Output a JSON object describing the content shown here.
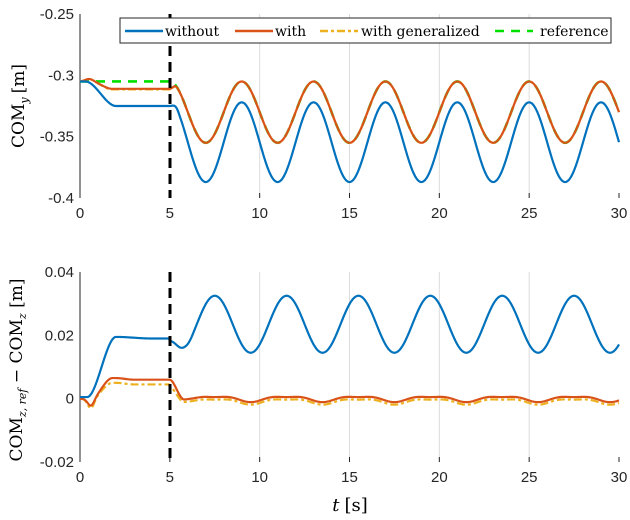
{
  "chart_data": [
    {
      "type": "line",
      "title": "",
      "xlabel": "",
      "ylabel": "COM_y [m]",
      "xlim": [
        0,
        30
      ],
      "ylim": [
        -0.4,
        -0.25
      ],
      "xticks": [
        "0",
        "5",
        "10",
        "15",
        "20",
        "25",
        "30"
      ],
      "yticks": [
        "-0.25",
        "-0.3",
        "-0.35",
        "-0.4"
      ],
      "grid": "x",
      "vline": {
        "x": 5,
        "style": "dashed",
        "color": "#000000"
      },
      "legend": {
        "position": "top",
        "entries": [
          "without",
          "with",
          "with generalized",
          "reference"
        ]
      },
      "series": [
        {
          "name": "without",
          "color": "#0072BD",
          "style": "solid",
          "description": "starts -0.305, settles -0.325 until t=5, then sinusoid period 4s between -0.322 and -0.387, peaks at t=9,13,17,21,25,29",
          "steady_pre": -0.325,
          "osc_max": -0.322,
          "osc_min": -0.387,
          "period": 4
        },
        {
          "name": "with",
          "color": "#D95319",
          "style": "solid",
          "description": "starts -0.305, small bump to -0.303, settles -0.311 until t=5, then sinusoid between -0.305 and -0.355 tracking reference",
          "steady_pre": -0.311,
          "osc_max": -0.305,
          "osc_min": -0.355,
          "period": 4
        },
        {
          "name": "with generalized",
          "color": "#EDB120",
          "style": "dash-dot",
          "description": "nearly identical to 'with'",
          "steady_pre": -0.312,
          "osc_max": -0.305,
          "osc_min": -0.355,
          "period": 4
        },
        {
          "name": "reference",
          "color": "#00E000",
          "style": "dashed",
          "description": "constant -0.305 until t=5, then sinusoid between -0.305 and -0.355",
          "steady_pre": -0.305,
          "osc_max": -0.305,
          "osc_min": -0.355,
          "period": 4
        }
      ]
    },
    {
      "type": "line",
      "title": "",
      "xlabel": "t [s]",
      "ylabel": "COM_z,ref − COM_z [m]",
      "xlim": [
        0,
        30
      ],
      "ylim": [
        -0.02,
        0.04
      ],
      "xticks": [
        "0",
        "5",
        "10",
        "15",
        "20",
        "25",
        "30"
      ],
      "yticks": [
        "0.04",
        "0.02",
        "0",
        "-0.02"
      ],
      "grid": "x",
      "vline": {
        "x": 5,
        "style": "dashed",
        "color": "#000000"
      },
      "series": [
        {
          "name": "without",
          "color": "#0072BD",
          "style": "solid",
          "description": "starts 0, rises to ~0.019 by t=2, steady 0.018 until t=5, dip to 0.017, then sinusoid period 4s between 0.014 and 0.0325, peaks at t≈7.5,11.5,15.5,19.5,23.5,27.5",
          "steady_pre": 0.018,
          "osc_max": 0.0325,
          "osc_min": 0.0145,
          "period": 4
        },
        {
          "name": "with",
          "color": "#D95319",
          "style": "solid",
          "description": "dips to -0.002 at t=0.5, rises to 0.0065, steady ~0.006 until t=5, drops to ~0, small oscillation ±0.001",
          "steady_pre": 0.006,
          "osc_max": 0.001,
          "osc_min": -0.001,
          "period": 4
        },
        {
          "name": "with generalized",
          "color": "#EDB120",
          "style": "dash-dot",
          "description": "slightly below 'with': steady ~0.0045 until t=5, then oscillation around -0.001",
          "steady_pre": 0.0045,
          "osc_max": 0.0,
          "osc_min": -0.002,
          "period": 4
        }
      ]
    }
  ],
  "top": {
    "yticks": [
      "-0.25",
      "-0.3",
      "-0.35",
      "-0.4"
    ],
    "xticks": [
      "0",
      "5",
      "10",
      "15",
      "20",
      "25",
      "30"
    ],
    "ylabel_main": "COM",
    "ylabel_sub": "y",
    "ylabel_unit": "[m]",
    "legend": [
      "without",
      "with",
      "with generalized",
      "reference"
    ]
  },
  "bottom": {
    "yticks": [
      "0.04",
      "0.02",
      "0",
      "-0.02"
    ],
    "xticks": [
      "0",
      "5",
      "10",
      "15",
      "20",
      "25",
      "30"
    ],
    "ylabel_main1": "COM",
    "ylabel_sub1": "z, ",
    "ylabel_ref": "ref",
    "ylabel_minus": " − COM",
    "ylabel_sub2": "z",
    "ylabel_unit": " [m]",
    "xlabel_var": "t",
    "xlabel_unit": "[s]"
  },
  "colors": {
    "without": "#0072BD",
    "with": "#D95319",
    "with_generalized": "#EDB120",
    "reference": "#00E000",
    "grid": "#DCDCDC"
  }
}
